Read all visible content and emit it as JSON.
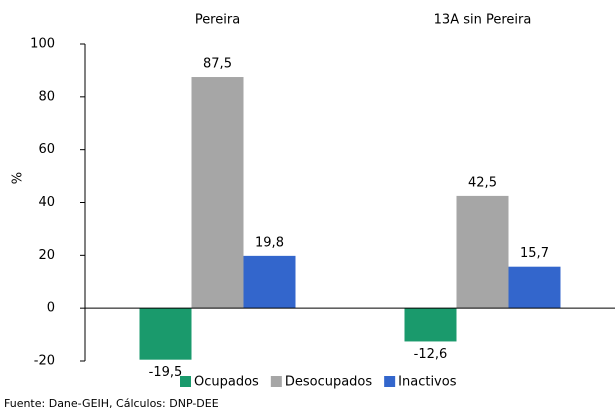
{
  "chart_data": {
    "type": "bar",
    "categories": [
      "Pereira",
      "13A sin Pereira"
    ],
    "series": [
      {
        "name": "Ocupados",
        "color": "#1a9a6c",
        "values": [
          -19.5,
          -12.6
        ],
        "value_labels": [
          "-19,5",
          "-12,6"
        ]
      },
      {
        "name": "Desocupados",
        "color": "#a6a6a6",
        "values": [
          87.5,
          42.5
        ],
        "value_labels": [
          "87,5",
          "42,5"
        ]
      },
      {
        "name": "Inactivos",
        "color": "#3366cc",
        "values": [
          19.8,
          15.7
        ],
        "value_labels": [
          "19,8",
          "15,7"
        ]
      }
    ],
    "ylabel": "%",
    "ylim": [
      -20,
      100
    ],
    "yticks": [
      -20,
      0,
      20,
      40,
      60,
      80,
      100
    ],
    "source": "Fuente: Dane-GEIH, Cálculos: DNP-DEE"
  }
}
